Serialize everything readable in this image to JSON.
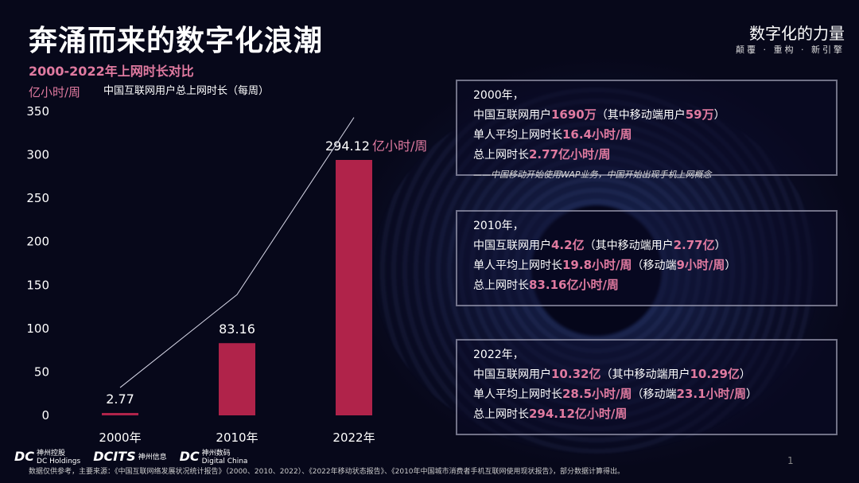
{
  "title": "奔涌而来的数字化浪潮",
  "subtitle": "2000-2022年上网时长对比",
  "brand": {
    "name": "数字化的力量",
    "slogan": "颠覆 · 重构 · 新引擎"
  },
  "colors": {
    "bar": "#b0234a",
    "highlight": "#e07aa0",
    "line": "#d8d8e8"
  },
  "chart_data": {
    "type": "bar",
    "ylabel": "亿小时/周",
    "ylim": [
      0,
      350
    ],
    "yticks": [
      "0",
      "50",
      "100",
      "150",
      "200",
      "250",
      "300",
      "350"
    ],
    "categories": [
      "2000年",
      "2010年",
      "2022年"
    ],
    "values": [
      2.77,
      83.16,
      294.12
    ],
    "data_labels": [
      "2.77",
      "83.16",
      "294.12"
    ],
    "data_label_unit": "亿小时/周",
    "line_series": {
      "name": "中国互联网用户总上网时长（每周）",
      "values": [
        32,
        139,
        343
      ]
    },
    "grid": false
  },
  "boxes": [
    {
      "year": "2000年，",
      "l1a": "中国互联网用户",
      "l1b": "1690万",
      "l1c": "（其中移动端用户",
      "l1d": "59万",
      "l1e": "）",
      "l2a": "单人平均上网时长",
      "l2b": "16.4小时/周",
      "l2c": "",
      "l3a": "总上网时长",
      "l3b": "2.77亿小时/周",
      "note": "——中国移动开始使用WAP业务，中国开始出现手机上网概念"
    },
    {
      "year": "2010年，",
      "l1a": "中国互联网用户",
      "l1b": "4.2亿",
      "l1c": "（其中移动端用户",
      "l1d": "2.77亿",
      "l1e": "）",
      "l2a": "单人平均上网时长",
      "l2b": "19.8小时/周",
      "l2c": "（移动端",
      "l2d": "9小时/周",
      "l2e": "）",
      "l3a": "总上网时长",
      "l3b": "83.16亿小时/周"
    },
    {
      "year": "2022年，",
      "l1a": "中国互联网用户",
      "l1b": "10.32亿",
      "l1c": "（其中移动端用户",
      "l1d": "10.29亿",
      "l1e": "）",
      "l2a": "单人平均上网时长",
      "l2b": "28.5小时/周",
      "l2c": "（移动端",
      "l2d": "23.1小时/周",
      "l2e": "）",
      "l3a": "总上网时长",
      "l3b": "294.12亿小时/周"
    }
  ],
  "logos": [
    {
      "mark": "DC",
      "name": "神州控股",
      "en": "DC Holdings"
    },
    {
      "mark": "DCITS",
      "name": "神州信息",
      "en": ""
    },
    {
      "mark": "DC",
      "name": "神州数码",
      "en": "Digital China"
    }
  ],
  "source": "数据仅供参考，主要来源：《中国互联网络发展状况统计报告》（2000、2010、2022）、《2022年移动状态报告》、《2010年中国城市消费者手机互联网使用现状报告》，部分数据计算得出。",
  "page": "1"
}
